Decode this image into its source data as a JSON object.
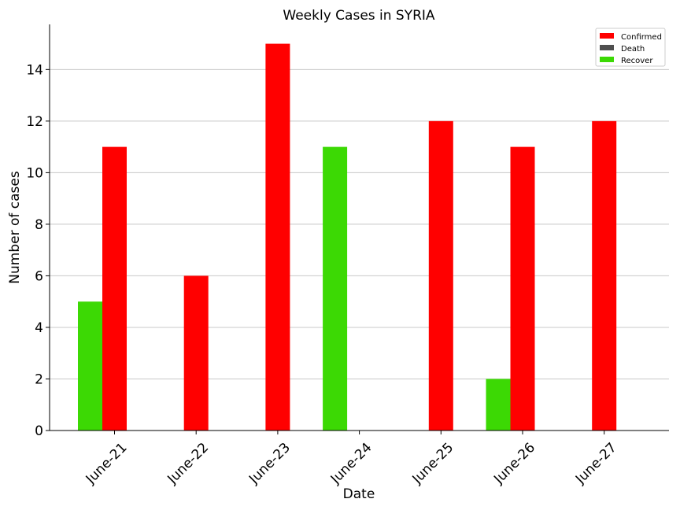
{
  "chart_data": {
    "type": "bar",
    "title": "Weekly Cases in SYRIA",
    "xlabel": "Date",
    "ylabel": "Number of cases",
    "categories": [
      "June-21",
      "June-22",
      "June-23",
      "June-24",
      "June-25",
      "June-26",
      "June-27"
    ],
    "series": [
      {
        "name": "Recover",
        "color": "#3cd904",
        "values": [
          5,
          0,
          0,
          11,
          0,
          2,
          0
        ]
      },
      {
        "name": "Confirmed",
        "color": "#ff0000",
        "values": [
          11,
          6,
          15,
          0,
          12,
          11,
          12
        ]
      },
      {
        "name": "Death",
        "color": "#4f4f4f",
        "values": [
          0,
          0,
          0,
          0,
          0,
          0,
          0
        ]
      }
    ],
    "legend_order": [
      "Confirmed",
      "Death",
      "Recover"
    ],
    "yticks": [
      0,
      2,
      4,
      6,
      8,
      10,
      12,
      14
    ],
    "ylim": [
      0,
      15.75
    ],
    "grid": "horizontal",
    "legend_position": "top-right"
  }
}
